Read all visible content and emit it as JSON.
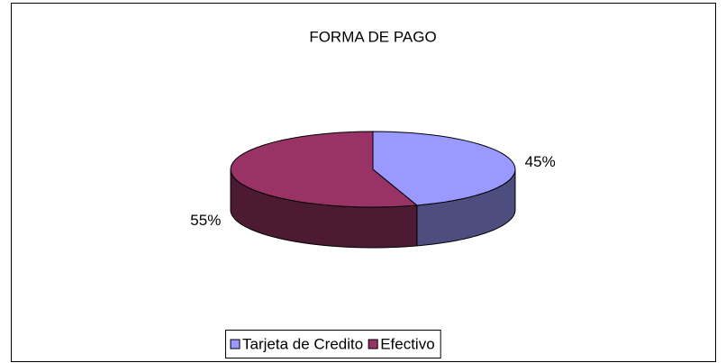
{
  "chart_data": {
    "type": "pie",
    "title": "FORMA DE PAGO",
    "categories": [
      "Tarjeta de Credito",
      "Efectivo"
    ],
    "values": [
      45,
      55
    ],
    "value_labels": [
      "45%",
      "55%"
    ],
    "colors": [
      "#9999ff",
      "#993366"
    ],
    "legend": "bottom"
  }
}
